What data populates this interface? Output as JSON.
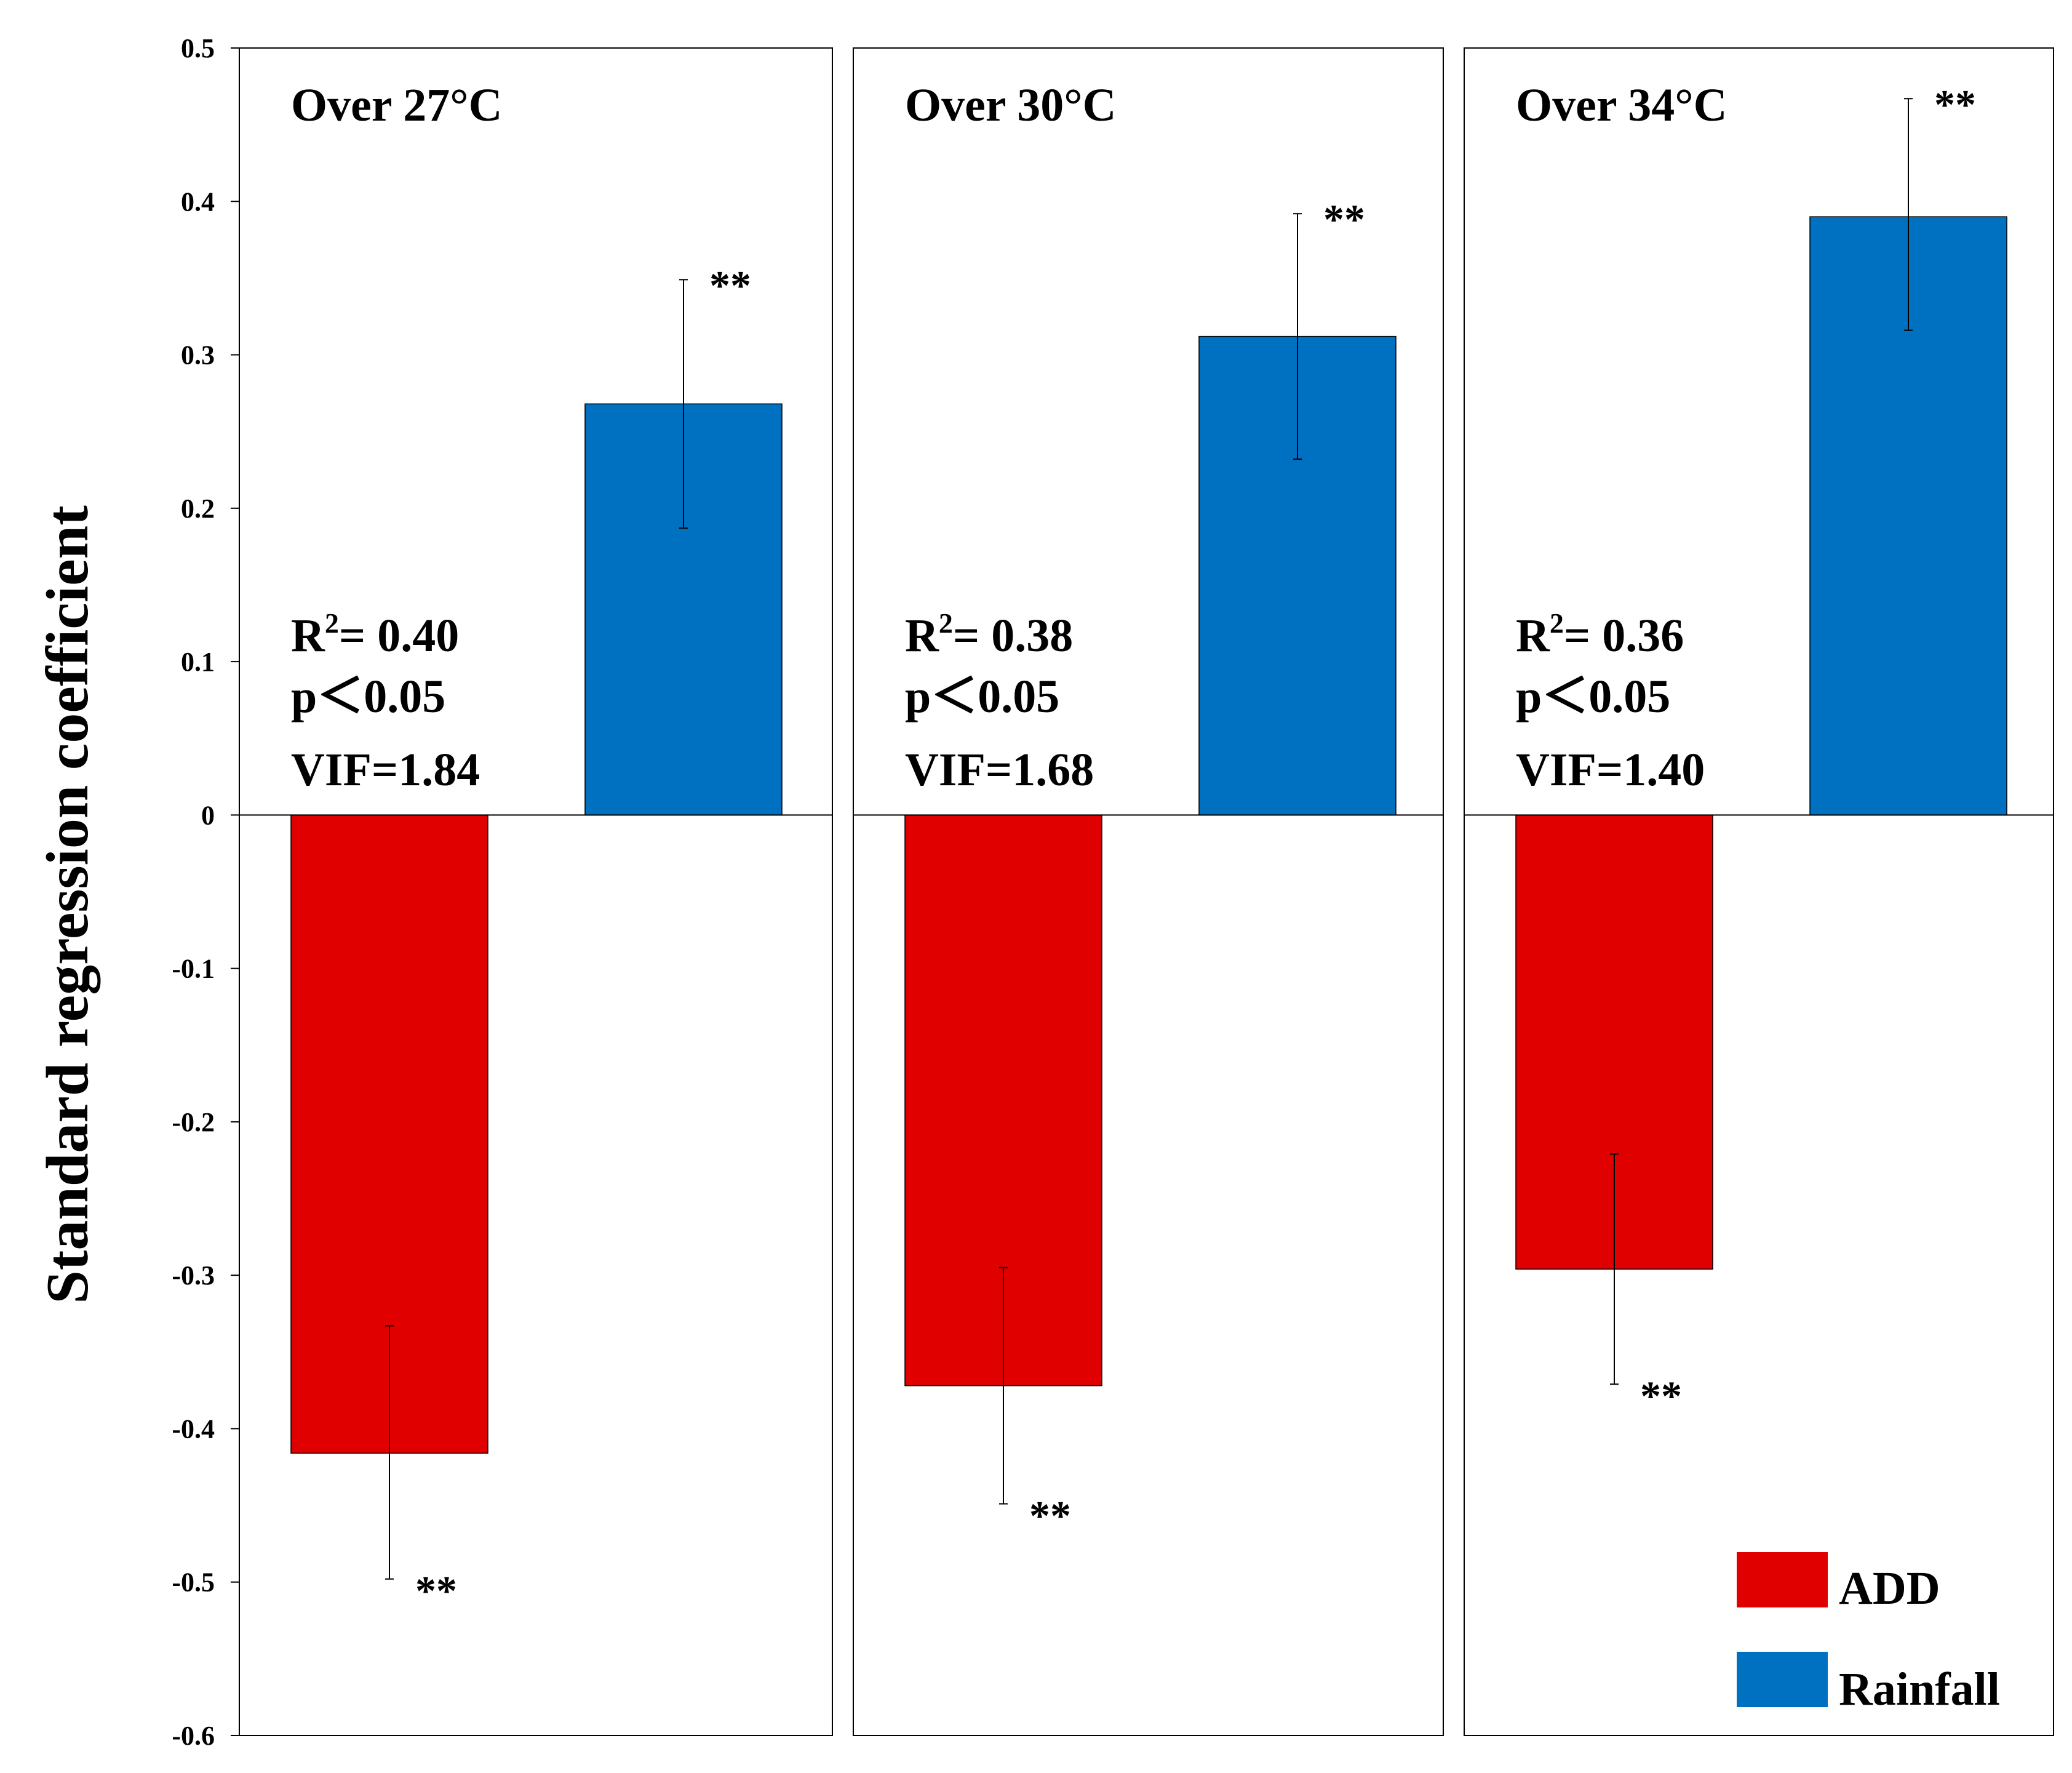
{
  "chart_data": {
    "type": "bar",
    "ylabel": "Standard regression coefficient",
    "ylim": [
      -0.6,
      0.5
    ],
    "yticks": [
      "0.5",
      "0.4",
      "0.3",
      "0.2",
      "0.1",
      "0",
      "-0.1",
      "-0.2",
      "-0.3",
      "-0.4",
      "-0.5",
      "-0.6"
    ],
    "ytick_values": [
      0.5,
      0.4,
      0.3,
      0.2,
      0.1,
      0,
      -0.1,
      -0.2,
      -0.3,
      -0.4,
      -0.5,
      -0.6
    ],
    "legend": [
      {
        "name": "ADD",
        "color": "#e00000"
      },
      {
        "name": "Rainfall",
        "color": "#0070c0"
      }
    ],
    "panels": [
      {
        "title": "Over 27°C",
        "r2_label": "R",
        "r2_sup": "2",
        "r2_value": "= 0.40",
        "p": "p＜0.05",
        "vif": "VIF=1.84",
        "series": [
          {
            "name": "ADD",
            "value": -0.416,
            "err_low": -0.498,
            "err_high": -0.333,
            "sig": "**"
          },
          {
            "name": "Rainfall",
            "value": 0.268,
            "err_low": 0.187,
            "err_high": 0.349,
            "sig": "**"
          }
        ]
      },
      {
        "title": "Over 30°C",
        "r2_label": "R",
        "r2_sup": "2",
        "r2_value": "= 0.38",
        "p": "p＜0.05",
        "vif": "VIF=1.68",
        "series": [
          {
            "name": "ADD",
            "value": -0.372,
            "err_low": -0.449,
            "err_high": -0.295,
            "sig": "**"
          },
          {
            "name": "Rainfall",
            "value": 0.312,
            "err_low": 0.232,
            "err_high": 0.392,
            "sig": "**"
          }
        ]
      },
      {
        "title": "Over 34°C",
        "r2_label": "R",
        "r2_sup": "2",
        "r2_value": "= 0.36",
        "p": "p＜0.05",
        "vif": "VIF=1.40",
        "series": [
          {
            "name": "ADD",
            "value": -0.296,
            "err_low": -0.371,
            "err_high": -0.221,
            "sig": "**"
          },
          {
            "name": "Rainfall",
            "value": 0.39,
            "err_low": 0.316,
            "err_high": 0.467,
            "sig": "**"
          }
        ]
      }
    ]
  }
}
